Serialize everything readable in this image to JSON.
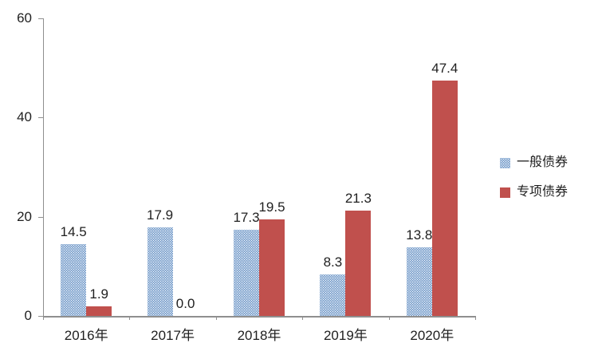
{
  "chart_data": {
    "type": "bar",
    "title": "",
    "xlabel": "",
    "ylabel": "",
    "categories": [
      "2016年",
      "2017年",
      "2018年",
      "2019年",
      "2020年"
    ],
    "series": [
      {
        "name": "一般债券",
        "color": "#4f81bd",
        "pattern": "dotted",
        "values": [
          14.5,
          17.9,
          17.3,
          8.3,
          13.8
        ],
        "labels": [
          "14.5",
          "17.9",
          "17.3",
          "8.3",
          "13.8"
        ]
      },
      {
        "name": "专项债券",
        "color": "#c0504d",
        "pattern": "solid",
        "values": [
          1.9,
          0.0,
          19.5,
          21.3,
          47.4
        ],
        "labels": [
          "1.9",
          "0.0",
          "19.5",
          "21.3",
          "47.4"
        ]
      }
    ],
    "y_ticks": [
      0,
      20,
      40,
      60
    ],
    "ylim": [
      0,
      60
    ],
    "grid": false,
    "legend_position": "right",
    "axis_color": "#8f8f8f",
    "label_color": "#1f1f1f",
    "background_color": "#ffffff"
  }
}
